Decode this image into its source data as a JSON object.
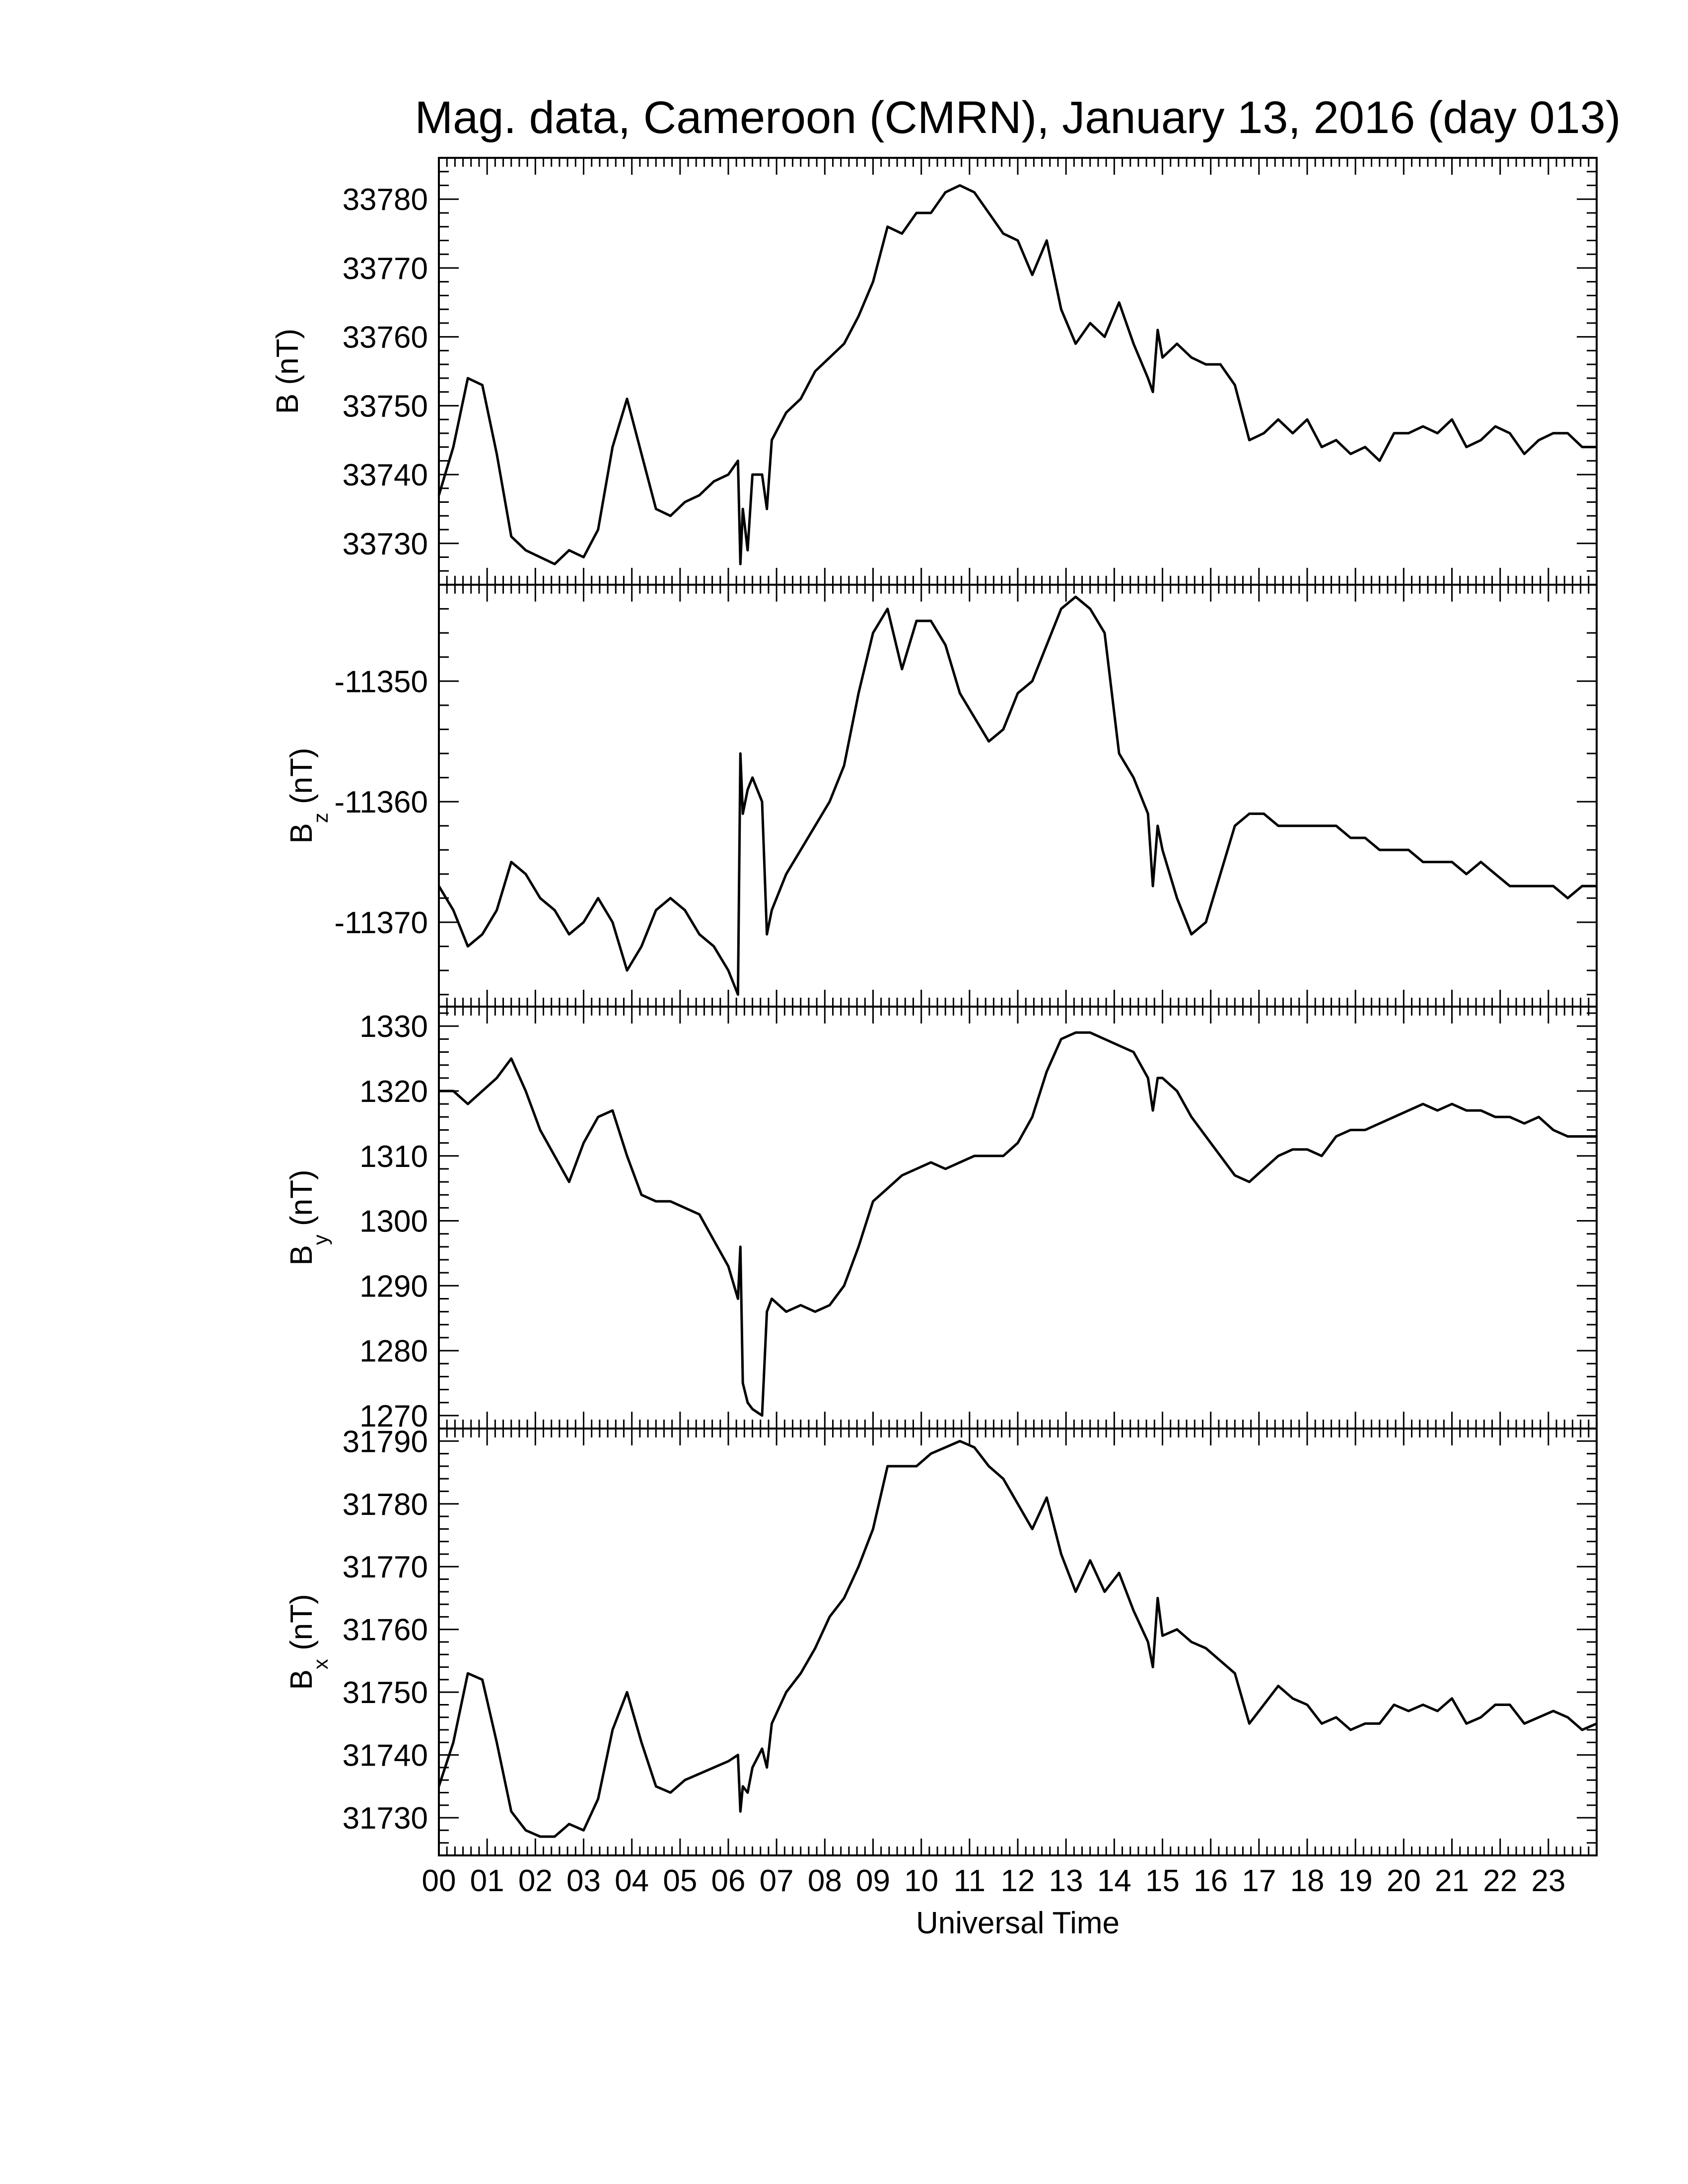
{
  "title": "Mag. data, Cameroon (CMRN), January 13, 2016 (day 013)",
  "x_axis_title": "Universal Time",
  "colors": {
    "line": "#000000",
    "frame": "#000000",
    "background": "#ffffff"
  },
  "chart_data": [
    {
      "type": "line",
      "panel": "B",
      "ylabel": {
        "main": "B",
        "sub": "",
        "unit": "(nT)"
      },
      "ylim": [
        33724,
        33786
      ],
      "yticks": [
        33730,
        33740,
        33750,
        33760,
        33770,
        33780
      ],
      "ytick_labels": [
        "33730",
        "33740",
        "33750",
        "33760",
        "33770",
        "33780"
      ],
      "xlim": [
        0,
        24
      ],
      "x": [
        0.0,
        0.3,
        0.6,
        0.9,
        1.2,
        1.5,
        1.8,
        2.1,
        2.4,
        2.7,
        3.0,
        3.3,
        3.6,
        3.9,
        4.2,
        4.5,
        4.8,
        5.1,
        5.4,
        5.7,
        6.0,
        6.2,
        6.25,
        6.3,
        6.4,
        6.5,
        6.7,
        6.8,
        6.9,
        7.2,
        7.5,
        7.8,
        8.1,
        8.4,
        8.7,
        9.0,
        9.3,
        9.6,
        9.9,
        10.2,
        10.5,
        10.8,
        11.1,
        11.4,
        11.7,
        12.0,
        12.3,
        12.6,
        12.9,
        13.2,
        13.5,
        13.8,
        14.1,
        14.4,
        14.7,
        14.8,
        14.9,
        15.0,
        15.3,
        15.6,
        15.9,
        16.2,
        16.5,
        16.8,
        17.1,
        17.4,
        17.7,
        18.0,
        18.3,
        18.6,
        18.9,
        19.2,
        19.5,
        19.8,
        20.1,
        20.4,
        20.7,
        21.0,
        21.3,
        21.6,
        21.9,
        22.2,
        22.5,
        22.8,
        23.1,
        23.4,
        23.7,
        24.0
      ],
      "y": [
        33737,
        33744,
        33754,
        33753,
        33743,
        33731,
        33729,
        33728,
        33727,
        33729,
        33728,
        33732,
        33744,
        33751,
        33743,
        33735,
        33734,
        33736,
        33737,
        33739,
        33740,
        33742,
        33727,
        33735,
        33729,
        33740,
        33740,
        33735,
        33745,
        33749,
        33751,
        33755,
        33757,
        33759,
        33763,
        33768,
        33776,
        33775,
        33778,
        33778,
        33781,
        33782,
        33781,
        33778,
        33775,
        33774,
        33769,
        33774,
        33764,
        33759,
        33762,
        33760,
        33765,
        33759,
        33754,
        33752,
        33761,
        33757,
        33759,
        33757,
        33756,
        33756,
        33753,
        33745,
        33746,
        33748,
        33746,
        33748,
        33744,
        33745,
        33743,
        33744,
        33742,
        33746,
        33746,
        33747,
        33746,
        33748,
        33744,
        33745,
        33747,
        33746,
        33743,
        33745,
        33746,
        33746,
        33744,
        33744
      ]
    },
    {
      "type": "line",
      "panel": "Bz",
      "ylabel": {
        "main": "B",
        "sub": "z",
        "unit": "(nT)"
      },
      "ylim": [
        -11377,
        -11342
      ],
      "yticks": [
        -11370,
        -11360,
        -11350
      ],
      "ytick_labels": [
        "-11370",
        "-11360",
        "-11350"
      ],
      "xlim": [
        0,
        24
      ],
      "x": [
        0.0,
        0.3,
        0.6,
        0.9,
        1.2,
        1.5,
        1.8,
        2.1,
        2.4,
        2.7,
        3.0,
        3.3,
        3.6,
        3.9,
        4.2,
        4.5,
        4.8,
        5.1,
        5.4,
        5.7,
        6.0,
        6.2,
        6.25,
        6.3,
        6.4,
        6.5,
        6.7,
        6.8,
        6.9,
        7.2,
        7.5,
        7.8,
        8.1,
        8.4,
        8.7,
        9.0,
        9.3,
        9.6,
        9.9,
        10.2,
        10.5,
        10.8,
        11.1,
        11.4,
        11.7,
        12.0,
        12.3,
        12.6,
        12.9,
        13.2,
        13.5,
        13.8,
        14.1,
        14.4,
        14.7,
        14.8,
        14.9,
        15.0,
        15.3,
        15.6,
        15.9,
        16.2,
        16.5,
        16.8,
        17.1,
        17.4,
        17.7,
        18.0,
        18.3,
        18.6,
        18.9,
        19.2,
        19.5,
        19.8,
        20.1,
        20.4,
        20.7,
        21.0,
        21.3,
        21.6,
        21.9,
        22.2,
        22.5,
        22.8,
        23.1,
        23.4,
        23.7,
        24.0
      ],
      "y": [
        -11367,
        -11369,
        -11372,
        -11371,
        -11369,
        -11365,
        -11366,
        -11368,
        -11369,
        -11371,
        -11370,
        -11368,
        -11370,
        -11374,
        -11372,
        -11369,
        -11368,
        -11369,
        -11371,
        -11372,
        -11374,
        -11376,
        -11356,
        -11361,
        -11359,
        -11358,
        -11360,
        -11371,
        -11369,
        -11366,
        -11364,
        -11362,
        -11360,
        -11357,
        -11351,
        -11346,
        -11344,
        -11349,
        -11345,
        -11345,
        -11347,
        -11351,
        -11353,
        -11355,
        -11354,
        -11351,
        -11350,
        -11347,
        -11344,
        -11343,
        -11344,
        -11346,
        -11356,
        -11358,
        -11361,
        -11367,
        -11362,
        -11364,
        -11368,
        -11371,
        -11370,
        -11366,
        -11362,
        -11361,
        -11361,
        -11362,
        -11362,
        -11362,
        -11362,
        -11362,
        -11363,
        -11363,
        -11364,
        -11364,
        -11364,
        -11365,
        -11365,
        -11365,
        -11366,
        -11365,
        -11366,
        -11367,
        -11367,
        -11367,
        -11367,
        -11368,
        -11367,
        -11367
      ]
    },
    {
      "type": "line",
      "panel": "By",
      "ylabel": {
        "main": "B",
        "sub": "y",
        "unit": "(nT)"
      },
      "ylim": [
        1268,
        1333
      ],
      "yticks": [
        1270,
        1280,
        1290,
        1300,
        1310,
        1320,
        1330
      ],
      "ytick_labels": [
        "1270",
        "1280",
        "1290",
        "1300",
        "1310",
        "1320",
        "1330"
      ],
      "xlim": [
        0,
        24
      ],
      "x": [
        0.0,
        0.3,
        0.6,
        0.9,
        1.2,
        1.5,
        1.8,
        2.1,
        2.4,
        2.7,
        3.0,
        3.3,
        3.6,
        3.9,
        4.2,
        4.5,
        4.8,
        5.1,
        5.4,
        5.7,
        6.0,
        6.2,
        6.25,
        6.3,
        6.4,
        6.5,
        6.7,
        6.8,
        6.9,
        7.2,
        7.5,
        7.8,
        8.1,
        8.4,
        8.7,
        9.0,
        9.3,
        9.6,
        9.9,
        10.2,
        10.5,
        10.8,
        11.1,
        11.4,
        11.7,
        12.0,
        12.3,
        12.6,
        12.9,
        13.2,
        13.5,
        13.8,
        14.1,
        14.4,
        14.7,
        14.8,
        14.9,
        15.0,
        15.3,
        15.6,
        15.9,
        16.2,
        16.5,
        16.8,
        17.1,
        17.4,
        17.7,
        18.0,
        18.3,
        18.6,
        18.9,
        19.2,
        19.5,
        19.8,
        20.1,
        20.4,
        20.7,
        21.0,
        21.3,
        21.6,
        21.9,
        22.2,
        22.5,
        22.8,
        23.1,
        23.4,
        23.7,
        24.0
      ],
      "y": [
        1320,
        1320,
        1318,
        1320,
        1322,
        1325,
        1320,
        1314,
        1310,
        1306,
        1312,
        1316,
        1317,
        1310,
        1304,
        1303,
        1303,
        1302,
        1301,
        1297,
        1293,
        1288,
        1296,
        1275,
        1272,
        1271,
        1270,
        1286,
        1288,
        1286,
        1287,
        1286,
        1287,
        1290,
        1296,
        1303,
        1305,
        1307,
        1308,
        1309,
        1308,
        1309,
        1310,
        1310,
        1310,
        1312,
        1316,
        1323,
        1328,
        1329,
        1329,
        1328,
        1327,
        1326,
        1322,
        1317,
        1322,
        1322,
        1320,
        1316,
        1313,
        1310,
        1307,
        1306,
        1308,
        1310,
        1311,
        1311,
        1310,
        1313,
        1314,
        1314,
        1315,
        1316,
        1317,
        1318,
        1317,
        1318,
        1317,
        1317,
        1316,
        1316,
        1315,
        1316,
        1314,
        1313,
        1313,
        1313
      ]
    },
    {
      "type": "line",
      "panel": "Bx",
      "ylabel": {
        "main": "B",
        "sub": "x",
        "unit": "(nT)"
      },
      "ylim": [
        31724,
        31792
      ],
      "yticks": [
        31730,
        31740,
        31750,
        31760,
        31770,
        31780,
        31790
      ],
      "ytick_labels": [
        "31730",
        "31740",
        "31750",
        "31760",
        "31770",
        "31780",
        "31790"
      ],
      "xlim": [
        0,
        24
      ],
      "x": [
        0.0,
        0.3,
        0.6,
        0.9,
        1.2,
        1.5,
        1.8,
        2.1,
        2.4,
        2.7,
        3.0,
        3.3,
        3.6,
        3.9,
        4.2,
        4.5,
        4.8,
        5.1,
        5.4,
        5.7,
        6.0,
        6.2,
        6.25,
        6.3,
        6.4,
        6.5,
        6.7,
        6.8,
        6.9,
        7.2,
        7.5,
        7.8,
        8.1,
        8.4,
        8.7,
        9.0,
        9.3,
        9.6,
        9.9,
        10.2,
        10.5,
        10.8,
        11.1,
        11.4,
        11.7,
        12.0,
        12.3,
        12.6,
        12.9,
        13.2,
        13.5,
        13.8,
        14.1,
        14.4,
        14.7,
        14.8,
        14.9,
        15.0,
        15.3,
        15.6,
        15.9,
        16.2,
        16.5,
        16.8,
        17.1,
        17.4,
        17.7,
        18.0,
        18.3,
        18.6,
        18.9,
        19.2,
        19.5,
        19.8,
        20.1,
        20.4,
        20.7,
        21.0,
        21.3,
        21.6,
        21.9,
        22.2,
        22.5,
        22.8,
        23.1,
        23.4,
        23.7,
        24.0
      ],
      "y": [
        31735,
        31742,
        31753,
        31752,
        31742,
        31731,
        31728,
        31727,
        31727,
        31729,
        31728,
        31733,
        31744,
        31750,
        31742,
        31735,
        31734,
        31736,
        31737,
        31738,
        31739,
        31740,
        31731,
        31735,
        31734,
        31738,
        31741,
        31738,
        31745,
        31750,
        31753,
        31757,
        31762,
        31765,
        31770,
        31776,
        31786,
        31786,
        31786,
        31788,
        31789,
        31790,
        31789,
        31786,
        31784,
        31780,
        31776,
        31781,
        31772,
        31766,
        31771,
        31766,
        31769,
        31763,
        31758,
        31754,
        31765,
        31759,
        31760,
        31758,
        31757,
        31755,
        31753,
        31745,
        31748,
        31751,
        31749,
        31748,
        31745,
        31746,
        31744,
        31745,
        31745,
        31748,
        31747,
        31748,
        31747,
        31749,
        31745,
        31746,
        31748,
        31748,
        31745,
        31746,
        31747,
        31746,
        31744,
        31745
      ]
    }
  ],
  "x_tick_labels": [
    "00",
    "01",
    "02",
    "03",
    "04",
    "05",
    "06",
    "07",
    "08",
    "09",
    "10",
    "11",
    "12",
    "13",
    "14",
    "15",
    "16",
    "17",
    "18",
    "19",
    "20",
    "21",
    "22",
    "23"
  ]
}
